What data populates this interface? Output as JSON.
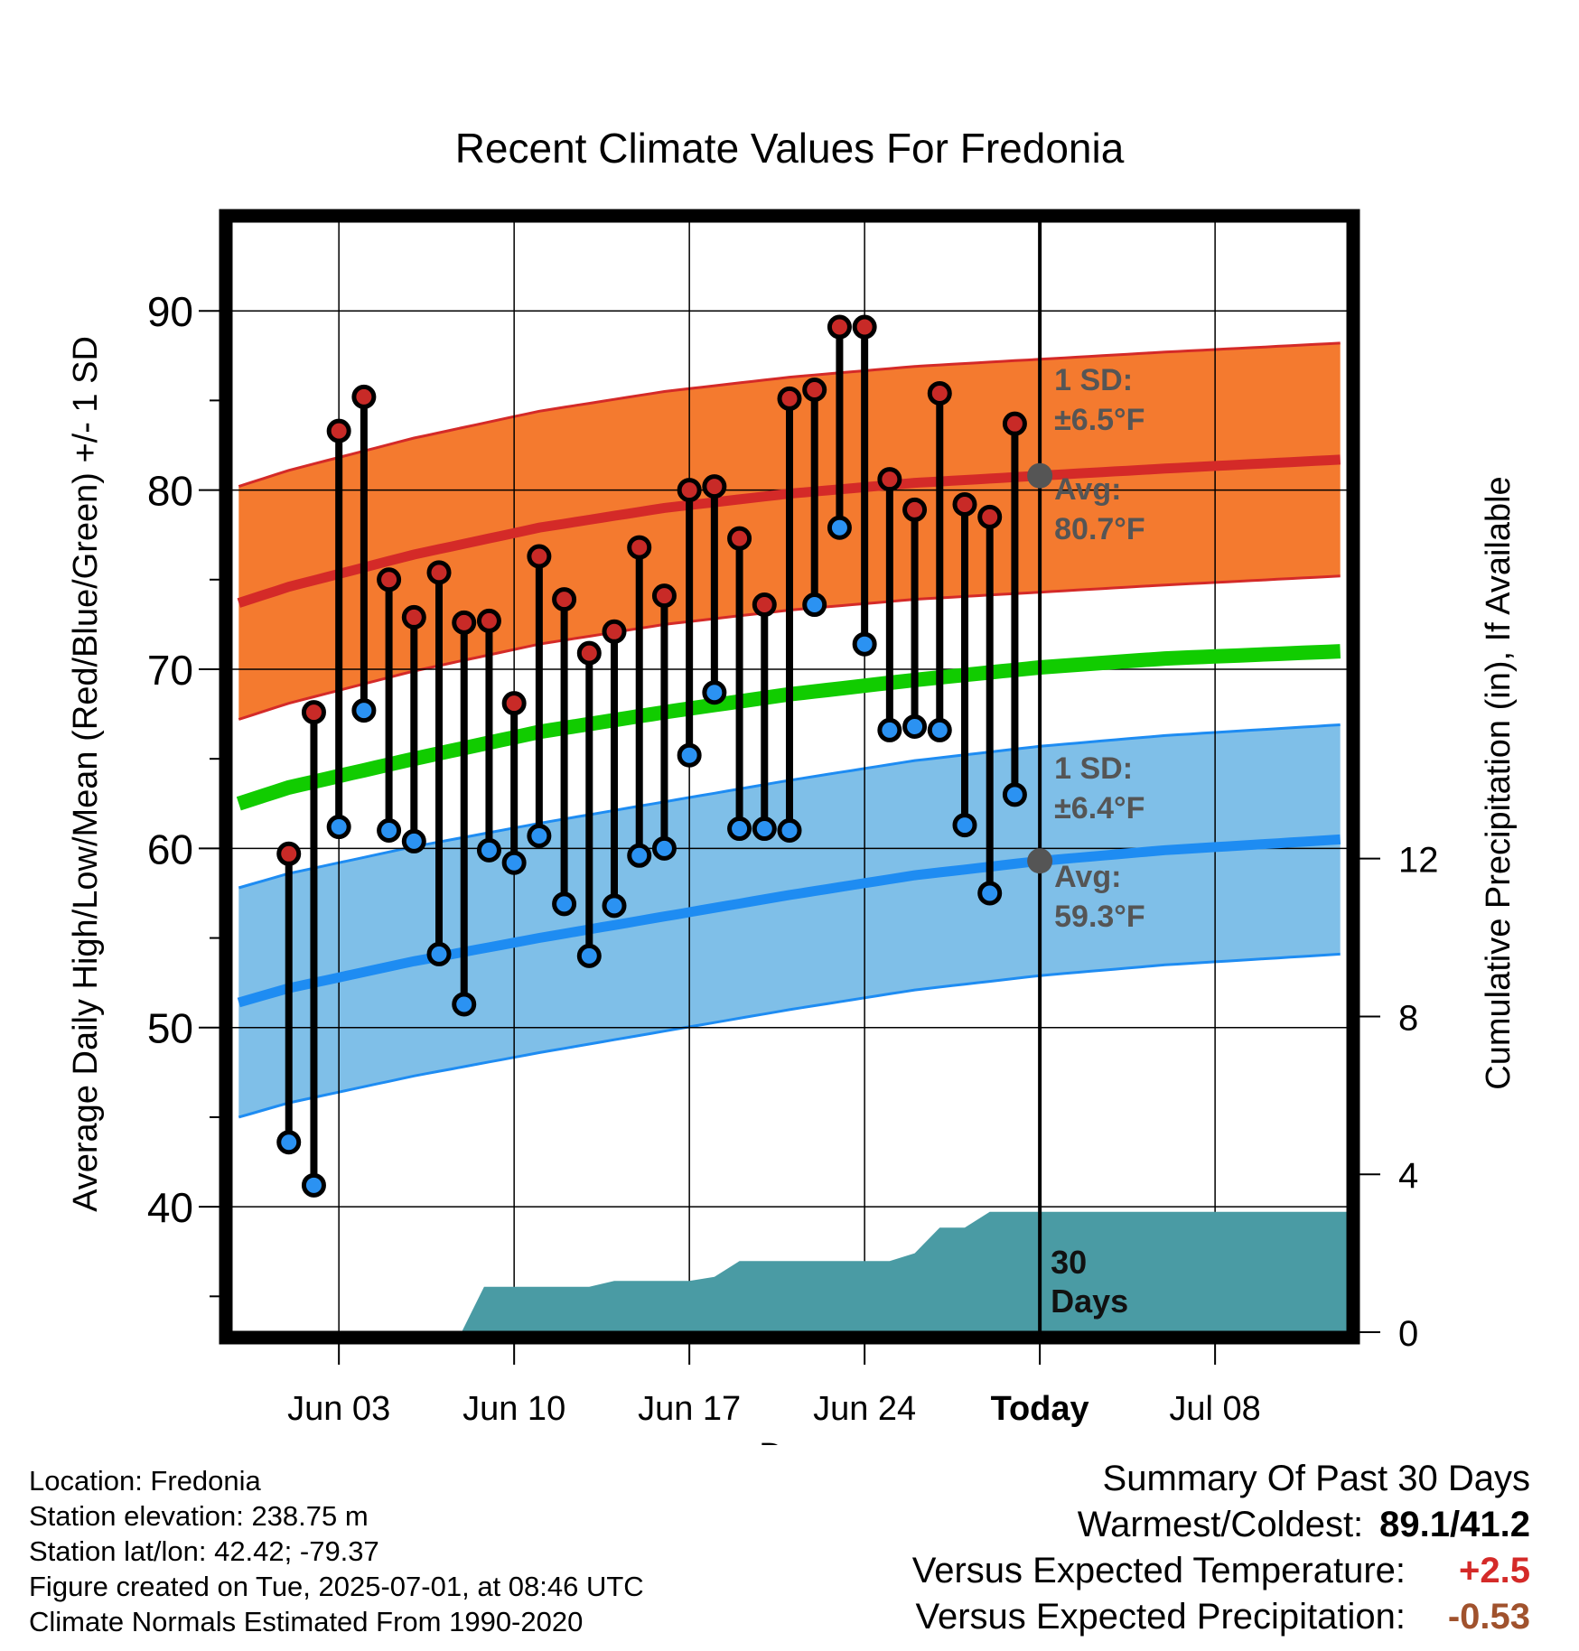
{
  "chart_data": {
    "type": "line",
    "title": "Recent Climate Values For Fredonia",
    "xlabel": "Day",
    "ylabel": "Average Daily High/Low/Mean (Red/Blue/Green) +/- 1 SD",
    "y2label": "Cumulative Precipitation (in), If Available",
    "ylim": [
      33,
      95
    ],
    "y2lim": [
      0,
      28.15
    ],
    "yticks": [
      40,
      50,
      60,
      70,
      80,
      90
    ],
    "y2ticks": [
      0,
      4,
      8,
      12
    ],
    "xlim": [
      -2.3,
      42.3
    ],
    "x_tick_positions": [
      2,
      9,
      16,
      23,
      30,
      37
    ],
    "x_tick_labels": [
      "Jun 03",
      "Jun 10",
      "Jun 17",
      "Jun 24",
      "Today",
      "Jul 08"
    ],
    "today_index": 30,
    "grid": true,
    "dates": [
      "Jun 01",
      "Jun 02",
      "Jun 03",
      "Jun 04",
      "Jun 05",
      "Jun 06",
      "Jun 07",
      "Jun 08",
      "Jun 09",
      "Jun 10",
      "Jun 11",
      "Jun 12",
      "Jun 13",
      "Jun 14",
      "Jun 15",
      "Jun 16",
      "Jun 17",
      "Jun 18",
      "Jun 19",
      "Jun 20",
      "Jun 21",
      "Jun 22",
      "Jun 23",
      "Jun 24",
      "Jun 25",
      "Jun 26",
      "Jun 27",
      "Jun 28",
      "Jun 29",
      "Jun 30"
    ],
    "daily_high": [
      59.7,
      67.6,
      83.3,
      85.2,
      75.0,
      72.9,
      75.4,
      72.6,
      72.7,
      68.1,
      76.3,
      73.9,
      70.9,
      72.1,
      76.8,
      74.1,
      80.0,
      80.2,
      77.3,
      73.6,
      85.1,
      85.6,
      89.1,
      89.1,
      80.6,
      78.9,
      85.4,
      79.2,
      78.5,
      83.7
    ],
    "daily_low": [
      43.6,
      41.2,
      61.2,
      67.7,
      61.0,
      60.4,
      54.1,
      51.3,
      59.9,
      59.2,
      60.7,
      56.9,
      54.0,
      56.8,
      59.6,
      60.0,
      65.2,
      68.7,
      61.1,
      61.1,
      61.0,
      73.6,
      77.9,
      71.4,
      66.6,
      66.8,
      66.6,
      61.3,
      57.5,
      63.0
    ],
    "normals_x": [
      -2,
      0,
      5,
      10,
      15,
      20,
      25,
      30,
      35,
      42
    ],
    "normal_high": [
      73.7,
      74.6,
      76.4,
      77.9,
      79.0,
      79.8,
      80.4,
      80.8,
      81.2,
      81.7
    ],
    "normal_high_sd": 6.5,
    "normal_low": [
      51.4,
      52.2,
      53.7,
      55.0,
      56.2,
      57.4,
      58.5,
      59.3,
      59.9,
      60.5
    ],
    "normal_low_sd": 6.4,
    "normal_mean": [
      62.5,
      63.4,
      65.0,
      66.5,
      67.6,
      68.6,
      69.4,
      70.1,
      70.6,
      71.0
    ],
    "precip_x": [
      6.9,
      7.8,
      12.0,
      13.0,
      16.0,
      17.0,
      18.0,
      24.0,
      25.0,
      26.0,
      27.0,
      28.0,
      29.0,
      42.3
    ],
    "precip_cum": [
      0,
      1.15,
      1.15,
      1.3,
      1.3,
      1.4,
      1.8,
      1.8,
      2.0,
      2.65,
      2.65,
      3.05,
      3.05,
      3.05
    ],
    "colors": {
      "high_band": "#f47a2f",
      "high_line": "#d42a28",
      "low_band": "#7fbfe8",
      "low_line": "#1e8cf2",
      "mean_line": "#11cc00",
      "precip": "#4a9ba4",
      "high_dot": "#c82a27",
      "low_dot": "#2b92f2",
      "annot": "#555555",
      "today_dot": "#555555"
    }
  },
  "annotations": {
    "high_sd_line1": "1 SD:",
    "high_sd_line2": "±6.5°F",
    "high_avg_line1": "Avg:",
    "high_avg_line2": "80.7°F",
    "low_sd_line1": "1 SD:",
    "low_sd_line2": "±6.4°F",
    "low_avg_line1": "Avg:",
    "low_avg_line2": "59.3°F",
    "period_line1": "30",
    "period_line2": "Days"
  },
  "info": {
    "location": "Location: Fredonia",
    "elevation": "Station elevation: 238.75 m",
    "latlon": "Station lat/lon: 42.42; -79.37",
    "created": "Figure created on Tue, 2025-07-01, at 08:46 UTC",
    "normals": "Climate Normals Estimated From 1990-2020"
  },
  "summary": {
    "heading": "Summary Of Past 30 Days",
    "warm_cold_label": "Warmest/Coldest:",
    "warm_cold_value": "89.1/41.2",
    "temp_label": "Versus Expected Temperature:",
    "temp_value": "+2.5",
    "temp_color": "#d42a28",
    "precip_label": "Versus Expected Precipitation:",
    "precip_value": "-0.53",
    "precip_color": "#a0522d"
  }
}
